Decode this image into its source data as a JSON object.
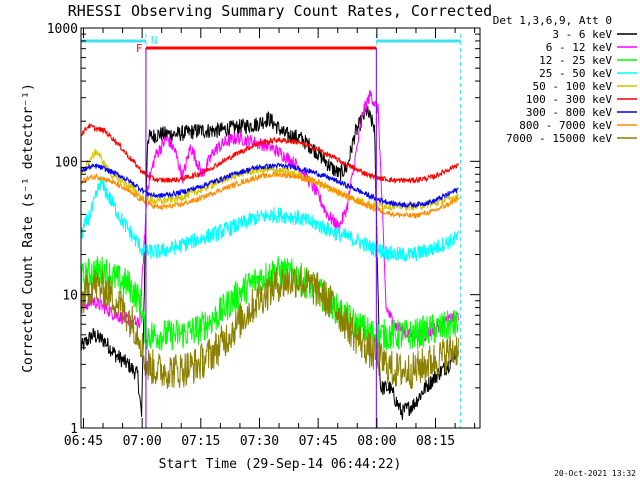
{
  "chart_data": {
    "type": "line",
    "title": "RHESSI Observing Summary Count Rates, Corrected",
    "xlabel": "Start Time (29-Sep-14 06:44:22)",
    "ylabel": "Corrected Count Rate (s⁻¹ detector⁻¹)",
    "y_scale": "log",
    "ylim": [
      1,
      1000
    ],
    "xlim_minutes": [
      0,
      102
    ],
    "x_tick_labels": [
      "06:45",
      "07:00",
      "07:15",
      "07:30",
      "07:45",
      "08:00",
      "08:15"
    ],
    "x_tick_minutes": [
      0.63,
      15.63,
      30.63,
      45.63,
      60.63,
      75.63,
      90.63
    ],
    "y_tick_values": [
      1,
      10,
      100,
      1000
    ],
    "y_tick_labels": [
      "1",
      "10",
      "100",
      "1000"
    ],
    "grid": false,
    "legend_position": "right",
    "legend_header": "Det 1,3,6,9, Att 0",
    "annotations": {
      "flag_F": "F",
      "flag_N": "N",
      "timestamp": "20-Oct-2021 13:32"
    },
    "night_intervals_minutes": [
      [
        0,
        16.6
      ],
      [
        75.5,
        97
      ]
    ],
    "flare_flag_minutes": [
      16.6,
      75.5
    ],
    "series": [
      {
        "name": "3 - 6 keV",
        "color": "#000000",
        "x": [
          0,
          3,
          6,
          9,
          12,
          14.5,
          15.5,
          17,
          20,
          25,
          30,
          35,
          40,
          45,
          48,
          52,
          56,
          60,
          64,
          66,
          68,
          70,
          73,
          75,
          76.5,
          79,
          82,
          85,
          88,
          91,
          94,
          96.5
        ],
        "y": [
          4,
          5,
          4.5,
          3.5,
          3,
          2.5,
          1.2,
          150,
          160,
          160,
          170,
          170,
          180,
          190,
          210,
          160,
          150,
          120,
          90,
          80,
          90,
          160,
          240,
          180,
          2,
          2,
          1.3,
          1.5,
          2,
          2.5,
          3,
          4
        ]
      },
      {
        "name": "6 - 12 keV",
        "color": "#ff00ff",
        "x": [
          0,
          3,
          6,
          9,
          12,
          15,
          17,
          19,
          22,
          24,
          26,
          28,
          31,
          34,
          37,
          40,
          44,
          48,
          52,
          56,
          60,
          63,
          66,
          68,
          70,
          72,
          74,
          76,
          78,
          80,
          84,
          88,
          92,
          96.5
        ],
        "y": [
          8,
          9,
          8,
          7,
          6.5,
          6,
          65,
          110,
          150,
          120,
          75,
          130,
          80,
          120,
          140,
          150,
          140,
          130,
          110,
          90,
          60,
          40,
          32,
          45,
          100,
          230,
          320,
          240,
          8,
          6,
          5,
          5,
          6,
          7
        ]
      },
      {
        "name": "12 - 25 keV",
        "color": "#00ff00",
        "x": [
          0,
          3,
          6,
          9,
          12,
          15,
          16.6,
          20,
          25,
          30,
          35,
          40,
          45,
          50,
          55,
          60,
          65,
          70,
          75,
          80,
          85,
          90,
          96.5
        ],
        "y": [
          13,
          15,
          15,
          13,
          12,
          9,
          5,
          5,
          5,
          5.5,
          7,
          10,
          13,
          15,
          14,
          11,
          8,
          6,
          5,
          5,
          5,
          5.5,
          6
        ]
      },
      {
        "name": "25 - 50 keV",
        "color": "#00ffff",
        "x": [
          0,
          3,
          5,
          7,
          10,
          13,
          16,
          20,
          25,
          30,
          35,
          40,
          45,
          50,
          55,
          60,
          65,
          70,
          75,
          80,
          85,
          90,
          96.5
        ],
        "y": [
          28,
          45,
          70,
          55,
          38,
          28,
          21,
          21,
          23,
          26,
          29,
          33,
          38,
          40,
          38,
          34,
          29,
          26,
          22,
          20,
          20,
          22,
          27
        ]
      },
      {
        "name": "50 - 100 keV",
        "color": "#d4c400",
        "x": [
          0,
          2,
          4,
          6,
          8,
          10,
          12,
          14,
          16,
          20,
          25,
          30,
          35,
          40,
          45,
          50,
          55,
          60,
          65,
          70,
          75,
          80,
          85,
          90,
          96.5
        ],
        "y": [
          80,
          100,
          120,
          95,
          78,
          72,
          66,
          60,
          52,
          50,
          53,
          60,
          70,
          80,
          86,
          86,
          80,
          70,
          60,
          52,
          47,
          46,
          46,
          48,
          55
        ]
      },
      {
        "name": "100 - 300 keV",
        "color": "#ff0000",
        "x": [
          0,
          2,
          4,
          6,
          8,
          10,
          12,
          14,
          16,
          18,
          20,
          25,
          30,
          35,
          40,
          45,
          50,
          55,
          60,
          65,
          70,
          75,
          80,
          85,
          90,
          96.5
        ],
        "y": [
          160,
          185,
          175,
          170,
          150,
          130,
          110,
          95,
          82,
          75,
          72,
          73,
          80,
          95,
          115,
          135,
          145,
          140,
          125,
          105,
          88,
          76,
          72,
          72,
          76,
          95
        ]
      },
      {
        "name": "300 - 800 keV",
        "color": "#0000ff",
        "x": [
          0,
          2,
          4,
          6,
          8,
          10,
          12,
          14,
          16,
          18,
          20,
          25,
          30,
          35,
          40,
          45,
          50,
          55,
          60,
          65,
          70,
          75,
          80,
          85,
          90,
          96.5
        ],
        "y": [
          85,
          90,
          92,
          88,
          83,
          78,
          72,
          66,
          60,
          56,
          55,
          58,
          64,
          72,
          82,
          90,
          93,
          90,
          82,
          72,
          62,
          53,
          48,
          47,
          50,
          62
        ]
      },
      {
        "name": "800 - 7000 keV",
        "color": "#ff8c00",
        "x": [
          0,
          2,
          4,
          6,
          8,
          10,
          12,
          14,
          16,
          18,
          20,
          25,
          30,
          35,
          40,
          45,
          50,
          55,
          60,
          65,
          70,
          75,
          80,
          85,
          90,
          96.5
        ],
        "y": [
          70,
          75,
          77,
          74,
          70,
          65,
          60,
          55,
          50,
          47,
          45,
          47,
          52,
          60,
          68,
          76,
          80,
          77,
          70,
          60,
          51,
          44,
          40,
          39,
          42,
          52
        ]
      },
      {
        "name": "7000 - 15000 keV",
        "color": "#8b8000",
        "x": [
          0,
          3,
          6,
          9,
          12,
          15,
          16.6,
          20,
          25,
          30,
          35,
          40,
          45,
          50,
          55,
          60,
          65,
          70,
          75,
          80,
          85,
          90,
          96.5
        ],
        "y": [
          9,
          12,
          11,
          9,
          7,
          5,
          3,
          2.7,
          2.7,
          3,
          4,
          6,
          9,
          12,
          13,
          11,
          8,
          5,
          3.5,
          2.7,
          2.7,
          3.2,
          4
        ]
      }
    ]
  }
}
